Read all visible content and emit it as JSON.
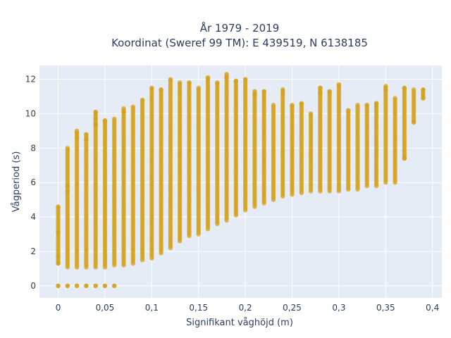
{
  "chart_data": {
    "type": "scatter",
    "title": "År 1979 - 2019",
    "subtitle": "Koordinat (Sweref 99 TM): E 439519, N 6138185",
    "xlabel": "Signifikant våghöjd (m)",
    "ylabel": "Vågperiod (s)",
    "xlim": [
      -0.02,
      0.41
    ],
    "ylim": [
      -0.7,
      12.8
    ],
    "x_ticks": [
      0,
      0.05,
      0.1,
      0.15,
      0.2,
      0.25,
      0.3,
      0.35,
      0.4
    ],
    "x_tick_labels": [
      "0",
      "0,05",
      "0,1",
      "0,15",
      "0,2",
      "0,25",
      "0,3",
      "0,35",
      "0,4"
    ],
    "y_ticks": [
      0,
      2,
      4,
      6,
      8,
      10,
      12
    ],
    "y_tick_labels": [
      "0",
      "2",
      "4",
      "6",
      "8",
      "10",
      "12"
    ],
    "grid": true,
    "background": "#e5ecf6",
    "marker_color": "#d4a017",
    "columns": [
      {
        "x": 0.0,
        "min": 0.0,
        "max": 4.6,
        "gap": [
          0.05,
          1.3
        ],
        "extra": [
          0,
          1.3,
          1.7,
          3.1,
          4.6
        ]
      },
      {
        "x": 0.01,
        "min": 0.0,
        "max": 8.0,
        "gap": [
          0.05,
          1.0
        ],
        "extra": [
          0,
          5.5,
          5.8,
          8.0
        ]
      },
      {
        "x": 0.02,
        "min": 0.0,
        "max": 9.0,
        "gap": [
          0.05,
          1.0
        ],
        "extra": [
          0,
          8.6,
          8.9
        ]
      },
      {
        "x": 0.03,
        "min": 0.0,
        "max": 8.8,
        "gap": [
          0.05,
          1.0
        ],
        "extra": [
          0,
          8.5,
          8.8
        ]
      },
      {
        "x": 0.04,
        "min": 0.0,
        "max": 10.1,
        "gap": [
          0.05,
          1.0
        ],
        "extra": [
          0,
          9.4,
          9.7,
          10.1
        ]
      },
      {
        "x": 0.05,
        "min": 0.0,
        "max": 9.6,
        "gap": [
          0.05,
          1.0
        ],
        "extra": [
          0,
          9.6
        ]
      },
      {
        "x": 0.06,
        "min": 0.0,
        "max": 9.7,
        "gap": [
          0.05,
          1.1
        ],
        "extra": [
          0,
          9.7
        ]
      },
      {
        "x": 0.07,
        "min": 1.2,
        "max": 10.3,
        "extra": [
          10.1,
          10.3
        ]
      },
      {
        "x": 0.08,
        "min": 1.3,
        "max": 10.4,
        "extra": [
          10.4
        ]
      },
      {
        "x": 0.09,
        "min": 1.5,
        "max": 10.8,
        "extra": [
          10.8
        ]
      },
      {
        "x": 0.1,
        "min": 1.6,
        "max": 11.5,
        "extra": [
          11.5
        ]
      },
      {
        "x": 0.11,
        "min": 1.9,
        "max": 11.4,
        "extra": [
          11.4
        ]
      },
      {
        "x": 0.12,
        "min": 2.2,
        "max": 12.0,
        "extra": [
          12.0
        ]
      },
      {
        "x": 0.13,
        "min": 2.6,
        "max": 11.8,
        "extra": [
          11.8
        ]
      },
      {
        "x": 0.14,
        "min": 2.9,
        "max": 11.8,
        "extra": [
          11.8
        ]
      },
      {
        "x": 0.15,
        "min": 3.0,
        "max": 11.5,
        "extra": [
          11.5
        ]
      },
      {
        "x": 0.16,
        "min": 3.3,
        "max": 12.1,
        "extra": [
          12.1
        ]
      },
      {
        "x": 0.17,
        "min": 3.6,
        "max": 11.8,
        "extra": [
          11.8
        ]
      },
      {
        "x": 0.18,
        "min": 3.8,
        "max": 12.3,
        "extra": [
          12.1,
          12.3
        ]
      },
      {
        "x": 0.19,
        "min": 4.1,
        "max": 11.9,
        "extra": [
          11.9
        ]
      },
      {
        "x": 0.2,
        "min": 4.4,
        "max": 12.0,
        "extra": [
          12.0
        ]
      },
      {
        "x": 0.21,
        "min": 4.6,
        "max": 11.3,
        "extra": [
          11.1,
          11.3
        ]
      },
      {
        "x": 0.22,
        "min": 4.8,
        "max": 11.3,
        "extra": [
          11.3
        ]
      },
      {
        "x": 0.23,
        "min": 5.0,
        "max": 10.5,
        "extra": [
          10.5
        ]
      },
      {
        "x": 0.24,
        "min": 5.2,
        "max": 11.4,
        "extra": [
          11.4
        ]
      },
      {
        "x": 0.25,
        "min": 5.3,
        "max": 10.5,
        "extra": [
          10.5
        ]
      },
      {
        "x": 0.26,
        "min": 5.4,
        "max": 10.6,
        "extra": [
          10.6
        ]
      },
      {
        "x": 0.27,
        "min": 5.5,
        "max": 10.0,
        "extra": [
          10.0
        ]
      },
      {
        "x": 0.28,
        "min": 5.5,
        "max": 11.5,
        "extra": [
          11.2,
          11.5
        ]
      },
      {
        "x": 0.29,
        "min": 5.5,
        "max": 11.3,
        "extra": [
          11.3
        ]
      },
      {
        "x": 0.3,
        "min": 5.5,
        "max": 11.7,
        "extra": [
          11.7
        ]
      },
      {
        "x": 0.31,
        "min": 5.6,
        "max": 10.2,
        "extra": [
          10.2
        ]
      },
      {
        "x": 0.32,
        "min": 5.6,
        "max": 10.5,
        "extra": [
          10.5
        ]
      },
      {
        "x": 0.33,
        "min": 5.8,
        "max": 10.5,
        "extra": [
          10.5
        ]
      },
      {
        "x": 0.34,
        "min": 5.8,
        "max": 10.6,
        "extra": [
          10.6
        ]
      },
      {
        "x": 0.35,
        "min": 6.0,
        "max": 11.6,
        "extra": [
          11.4,
          11.6
        ]
      },
      {
        "x": 0.36,
        "min": 6.0,
        "max": 10.9,
        "extra": [
          10.9
        ]
      },
      {
        "x": 0.37,
        "min": 7.4,
        "max": 11.5,
        "extra": [
          7.4,
          11.5
        ]
      },
      {
        "x": 0.38,
        "min": 9.5,
        "max": 11.4,
        "extra": [
          9.5,
          11.4
        ]
      },
      {
        "x": 0.39,
        "min": 10.9,
        "max": 11.4,
        "extra": [
          10.9,
          11.4
        ]
      }
    ]
  }
}
